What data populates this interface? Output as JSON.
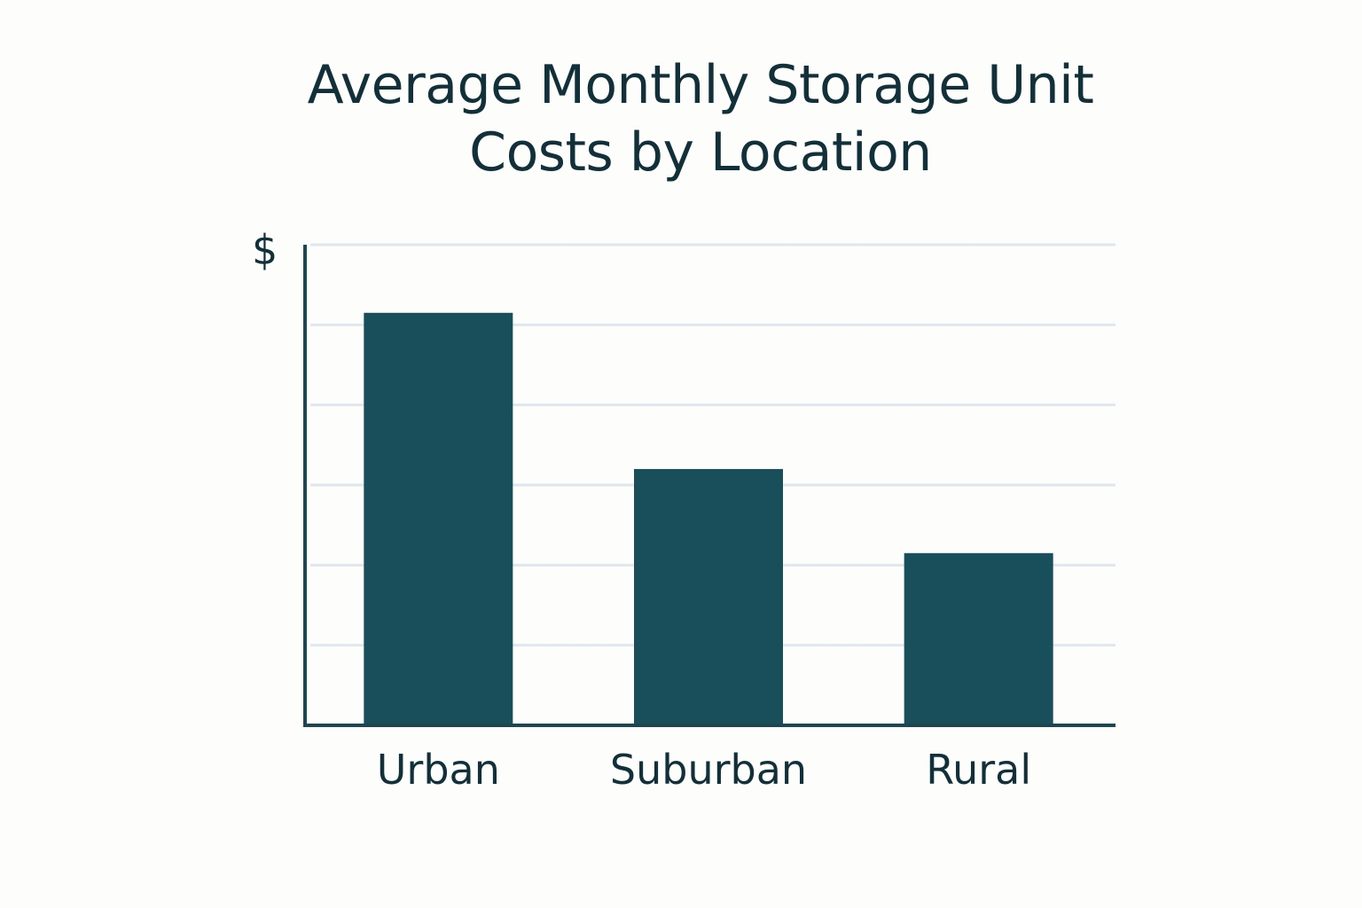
{
  "chart_data": {
    "type": "bar",
    "title_lines": [
      "Average Monthly Storage Unit",
      "Costs by Location"
    ],
    "ylabel": "$",
    "xlabel": "",
    "categories": [
      "Urban",
      "Suburban",
      "Rural"
    ],
    "values": [
      5.15,
      3.2,
      2.15
    ],
    "ylim": [
      0,
      6
    ],
    "grid": true,
    "colors": {
      "bar": "#184f5a",
      "axis": "#1d4750",
      "grid": "#dfe8ee",
      "text": "#12303a",
      "background": "#fdfdfb"
    }
  }
}
